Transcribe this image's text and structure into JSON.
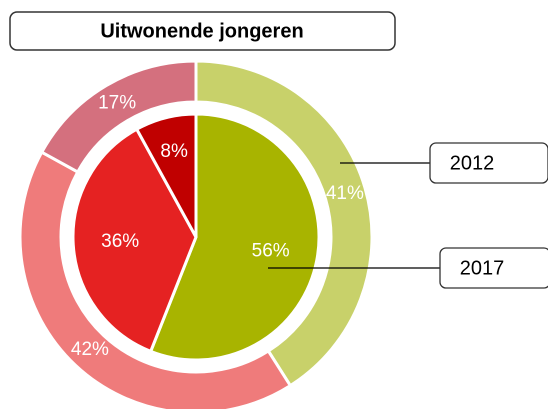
{
  "chart_data": {
    "type": "nested-donut",
    "title": "Uitwonende jongeren",
    "series": [
      {
        "name": "2012",
        "values": [
          41,
          42,
          17
        ],
        "value_labels": [
          "41%",
          "42%",
          "17%"
        ],
        "colors": [
          "#c8d16a",
          "#ef7b7b",
          "#d4707e"
        ]
      },
      {
        "name": "2017",
        "values": [
          56,
          36,
          8
        ],
        "value_labels": [
          "56%",
          "36%",
          "8%"
        ],
        "colors": [
          "#a8b400",
          "#e52222",
          "#c00000"
        ]
      }
    ]
  }
}
